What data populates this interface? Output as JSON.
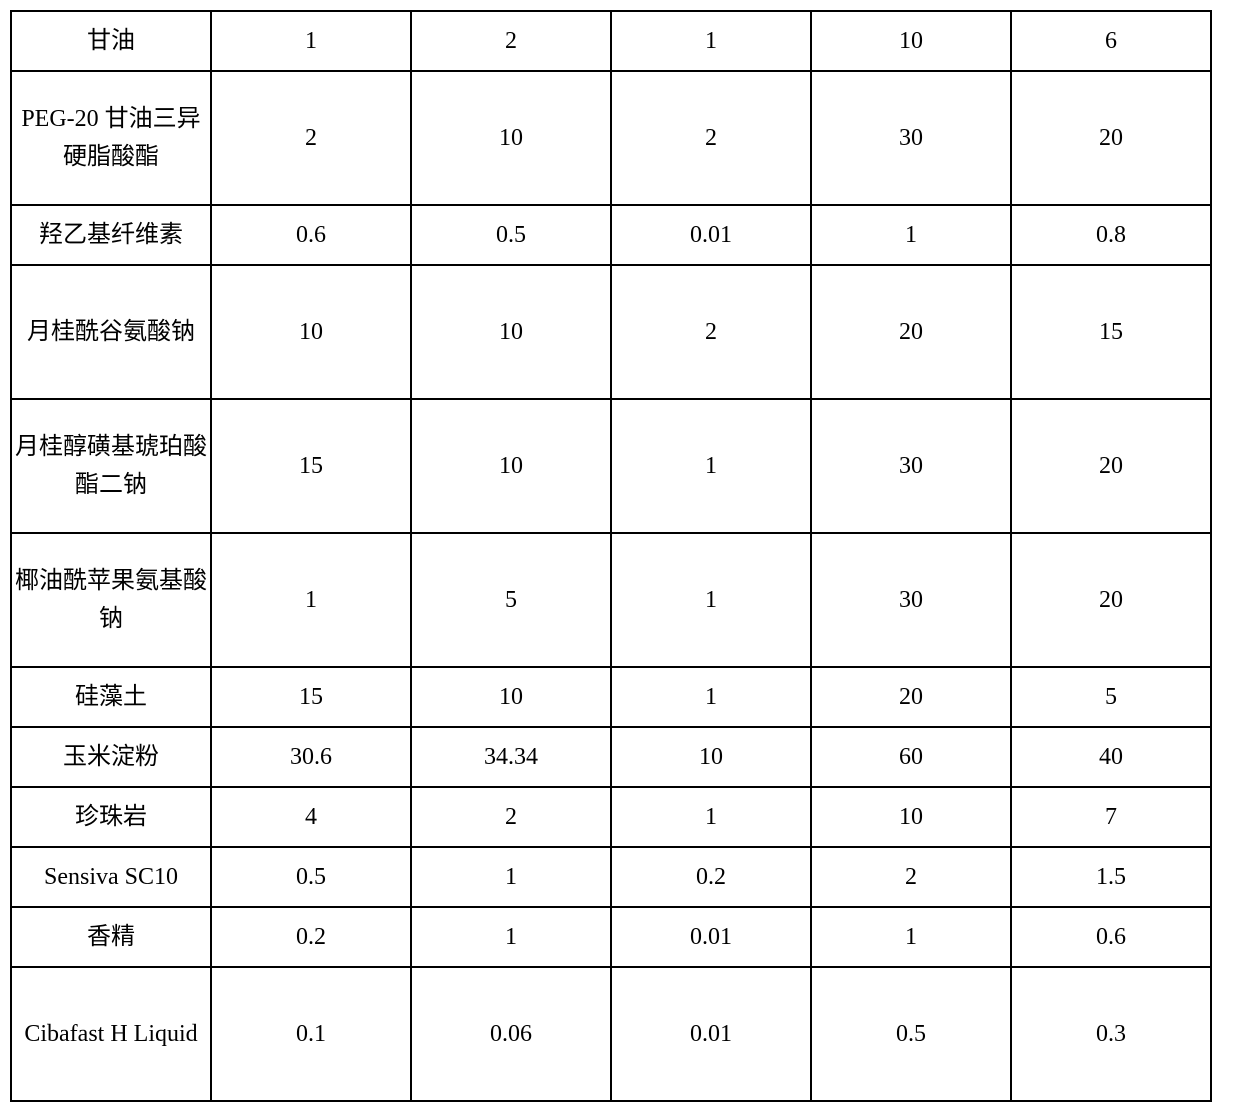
{
  "table": {
    "columns": 6,
    "border_color": "#000000",
    "background_color": "#ffffff",
    "text_color": "#000000",
    "label_fontsize": 24,
    "value_fontsize": 24,
    "rows": [
      {
        "label": "甘油",
        "label_lines": 1,
        "latin": false,
        "values": [
          "1",
          "2",
          "1",
          "10",
          "6"
        ]
      },
      {
        "label": "PEG-20 甘油三异硬脂酸酯",
        "label_lines": 2,
        "latin": false,
        "values": [
          "2",
          "10",
          "2",
          "30",
          "20"
        ]
      },
      {
        "label": "羟乙基纤维素",
        "label_lines": 1,
        "latin": false,
        "values": [
          "0.6",
          "0.5",
          "0.01",
          "1",
          "0.8"
        ]
      },
      {
        "label": "月桂酰谷氨酸钠",
        "label_lines": 2,
        "latin": false,
        "values": [
          "10",
          "10",
          "2",
          "20",
          "15"
        ]
      },
      {
        "label": "月桂醇磺基琥珀酸酯二钠",
        "label_lines": 2,
        "latin": false,
        "values": [
          "15",
          "10",
          "1",
          "30",
          "20"
        ]
      },
      {
        "label": "椰油酰苹果氨基酸钠",
        "label_lines": 2,
        "latin": false,
        "values": [
          "1",
          "5",
          "1",
          "30",
          "20"
        ]
      },
      {
        "label": "硅藻土",
        "label_lines": 1,
        "latin": false,
        "values": [
          "15",
          "10",
          "1",
          "20",
          "5"
        ]
      },
      {
        "label": "玉米淀粉",
        "label_lines": 1,
        "latin": false,
        "values": [
          "30.6",
          "34.34",
          "10",
          "60",
          "40"
        ]
      },
      {
        "label": "珍珠岩",
        "label_lines": 1,
        "latin": false,
        "values": [
          "4",
          "2",
          "1",
          "10",
          "7"
        ]
      },
      {
        "label": "Sensiva SC10",
        "label_lines": 1,
        "latin": true,
        "values": [
          "0.5",
          "1",
          "0.2",
          "2",
          "1.5"
        ]
      },
      {
        "label": "香精",
        "label_lines": 1,
        "latin": false,
        "values": [
          "0.2",
          "1",
          "0.01",
          "1",
          "0.6"
        ]
      },
      {
        "label": "Cibafast H Liquid",
        "label_lines": 2,
        "latin": true,
        "values": [
          "0.1",
          "0.06",
          "0.01",
          "0.5",
          "0.3"
        ]
      }
    ]
  }
}
